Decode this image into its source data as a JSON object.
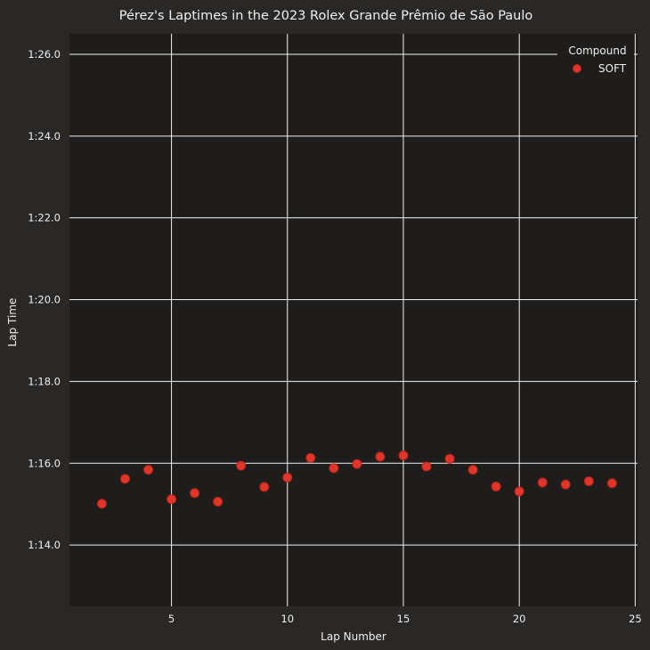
{
  "chart_data": {
    "type": "scatter",
    "title": "Pérez's Laptimes in the 2023 Rolex Grande Prêmio de São Paulo",
    "xlabel": "Lap Number",
    "ylabel": "Lap Time",
    "xlim": [
      0.6,
      25.1
    ],
    "ylim_seconds": [
      72.5,
      86.5
    ],
    "x_ticks": [
      5,
      10,
      15,
      20,
      25
    ],
    "y_ticks": [
      {
        "value": 74,
        "label": "1:14.0"
      },
      {
        "value": 76,
        "label": "1:16.0"
      },
      {
        "value": 78,
        "label": "1:18.0"
      },
      {
        "value": 80,
        "label": "1:20.0"
      },
      {
        "value": 82,
        "label": "1:22.0"
      },
      {
        "value": 84,
        "label": "1:24.0"
      },
      {
        "value": 86,
        "label": "1:26.0"
      }
    ],
    "grid": true,
    "legend": {
      "title": "Compound",
      "position": "top-right"
    },
    "series": [
      {
        "name": "SOFT",
        "color": "#e0352b",
        "x": [
          2,
          3,
          4,
          5,
          6,
          7,
          8,
          9,
          10,
          11,
          12,
          13,
          14,
          15,
          16,
          17,
          18,
          19,
          20,
          21,
          22,
          23,
          24
        ],
        "y": [
          75.01,
          75.62,
          75.84,
          75.12,
          75.27,
          75.06,
          75.94,
          75.42,
          75.65,
          76.13,
          75.88,
          75.98,
          76.16,
          76.19,
          75.92,
          76.11,
          75.84,
          75.43,
          75.31,
          75.53,
          75.48,
          75.56,
          75.51
        ]
      }
    ]
  }
}
